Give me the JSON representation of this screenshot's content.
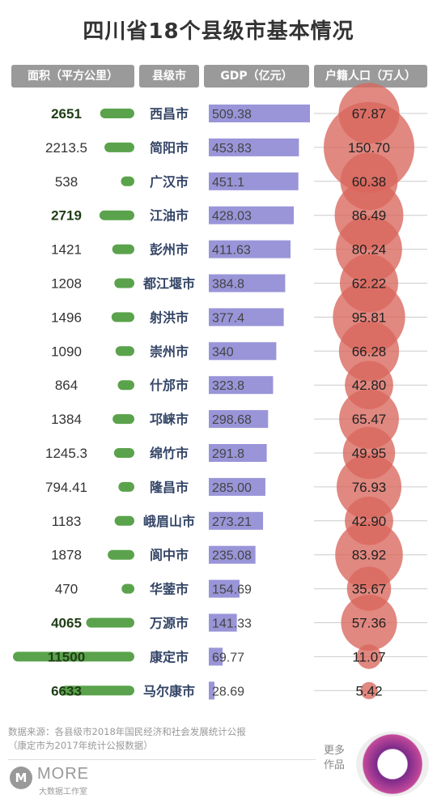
{
  "title": "四川省18个县级市基本情况",
  "headers": {
    "area": "面积（平方公里）",
    "city": "县级市",
    "gdp": "GDP（亿元）",
    "pop": "户籍人口（万人）"
  },
  "colors": {
    "area_bar": "#5aa34c",
    "gdp_bar": "#9a95d8",
    "pop_circle": "#d9675c",
    "header_bg": "#9a9a9a"
  },
  "chart_data": {
    "type": "table",
    "title": "四川省18个县级市基本情况",
    "columns": [
      "面积（平方公里）",
      "县级市",
      "GDP（亿元）",
      "户籍人口（万人）"
    ],
    "rows": [
      {
        "city": "西昌市",
        "area": 2651,
        "area_label": "2651",
        "area_bold": true,
        "gdp": 509.38,
        "gdp_label": "509.38",
        "pop": 67.87,
        "pop_label": "67.87"
      },
      {
        "city": "简阳市",
        "area": 2213.5,
        "area_label": "2213.5",
        "area_bold": false,
        "gdp": 453.83,
        "gdp_label": "453.83",
        "pop": 150.7,
        "pop_label": "150.70"
      },
      {
        "city": "广汉市",
        "area": 538,
        "area_label": "538",
        "area_bold": false,
        "gdp": 451.1,
        "gdp_label": "451.1",
        "pop": 60.38,
        "pop_label": "60.38"
      },
      {
        "city": "江油市",
        "area": 2719,
        "area_label": "2719",
        "area_bold": true,
        "gdp": 428.03,
        "gdp_label": "428.03",
        "pop": 86.49,
        "pop_label": "86.49"
      },
      {
        "city": "彭州市",
        "area": 1421,
        "area_label": "1421",
        "area_bold": false,
        "gdp": 411.63,
        "gdp_label": "411.63",
        "pop": 80.24,
        "pop_label": "80.24"
      },
      {
        "city": "都江堰市",
        "area": 1208,
        "area_label": "1208",
        "area_bold": false,
        "gdp": 384.8,
        "gdp_label": "384.8",
        "pop": 62.22,
        "pop_label": "62.22"
      },
      {
        "city": "射洪市",
        "area": 1496,
        "area_label": "1496",
        "area_bold": false,
        "gdp": 377.4,
        "gdp_label": "377.4",
        "pop": 95.81,
        "pop_label": "95.81"
      },
      {
        "city": "崇州市",
        "area": 1090,
        "area_label": "1090",
        "area_bold": false,
        "gdp": 340,
        "gdp_label": "340",
        "pop": 66.28,
        "pop_label": "66.28"
      },
      {
        "city": "什邡市",
        "area": 864,
        "area_label": "864",
        "area_bold": false,
        "gdp": 323.8,
        "gdp_label": "323.8",
        "pop": 42.8,
        "pop_label": "42.80"
      },
      {
        "city": "邛崃市",
        "area": 1384,
        "area_label": "1384",
        "area_bold": false,
        "gdp": 298.68,
        "gdp_label": "298.68",
        "pop": 65.47,
        "pop_label": "65.47"
      },
      {
        "city": "绵竹市",
        "area": 1245.3,
        "area_label": "1245.3",
        "area_bold": false,
        "gdp": 291.8,
        "gdp_label": "291.8",
        "pop": 49.95,
        "pop_label": "49.95"
      },
      {
        "city": "隆昌市",
        "area": 794.41,
        "area_label": "794.41",
        "area_bold": false,
        "gdp": 285.0,
        "gdp_label": "285.00",
        "pop": 76.93,
        "pop_label": "76.93"
      },
      {
        "city": "峨眉山市",
        "area": 1183,
        "area_label": "1183",
        "area_bold": false,
        "gdp": 273.21,
        "gdp_label": "273.21",
        "pop": 42.9,
        "pop_label": "42.90"
      },
      {
        "city": "阆中市",
        "area": 1878,
        "area_label": "1878",
        "area_bold": false,
        "gdp": 235.08,
        "gdp_label": "235.08",
        "pop": 83.92,
        "pop_label": "83.92"
      },
      {
        "city": "华蓥市",
        "area": 470,
        "area_label": "470",
        "area_bold": false,
        "gdp": 154.69,
        "gdp_label": "154.69",
        "pop": 35.67,
        "pop_label": "35.67"
      },
      {
        "city": "万源市",
        "area": 4065,
        "area_label": "4065",
        "area_bold": true,
        "gdp": 141.33,
        "gdp_label": "141.33",
        "pop": 57.36,
        "pop_label": "57.36"
      },
      {
        "city": "康定市",
        "area": 11500,
        "area_label": "11500",
        "area_bold": true,
        "gdp": 69.77,
        "gdp_label": "69.77",
        "pop": 11.07,
        "pop_label": "11.07"
      },
      {
        "city": "马尔康市",
        "area": 6633,
        "area_label": "6633",
        "area_bold": true,
        "gdp": 28.69,
        "gdp_label": "28.69",
        "pop": 5.42,
        "pop_label": "5.42"
      }
    ]
  },
  "footer": {
    "source_line1": "数据来源：各县级市2018年国民经济和社会发展统计公报",
    "source_line2": "（康定市为2017年统计公报数据）",
    "more_label": "更多作品",
    "logo_text": "MORE",
    "logo_sub": "大数据工作室",
    "logo_mark": "M"
  }
}
